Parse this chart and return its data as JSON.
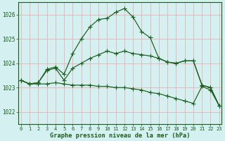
{
  "title": "Graphe pression niveau de la mer (hPa)",
  "background_color": "#d4f0f0",
  "grid_color": "#e8b0b0",
  "line_color": "#1a5c1a",
  "ylim": [
    1021.5,
    1026.5
  ],
  "yticks": [
    1022,
    1023,
    1024,
    1025,
    1026
  ],
  "xlim": [
    -0.3,
    23.3
  ],
  "xticks": [
    0,
    1,
    2,
    3,
    4,
    5,
    6,
    7,
    8,
    9,
    10,
    11,
    12,
    13,
    14,
    15,
    16,
    17,
    18,
    19,
    20,
    21,
    22,
    23
  ],
  "series": [
    {
      "x": [
        0,
        1,
        2,
        3,
        4,
        5,
        6,
        7,
        8,
        9,
        10,
        11,
        12,
        13,
        14,
        15,
        16,
        17,
        18,
        19,
        20,
        21,
        22,
        23
      ],
      "y": [
        1023.3,
        1023.15,
        1023.15,
        1023.15,
        1023.2,
        1023.15,
        1023.1,
        1023.1,
        1023.1,
        1023.05,
        1023.05,
        1023.0,
        1023.0,
        1022.95,
        1022.9,
        1022.8,
        1022.75,
        1022.65,
        1022.55,
        1022.45,
        1022.35,
        1023.05,
        1022.9,
        1022.25
      ]
    },
    {
      "x": [
        0,
        1,
        2,
        3,
        4,
        5,
        6,
        7,
        8,
        9,
        10,
        11,
        12,
        13,
        14,
        15,
        16,
        17,
        18,
        19,
        20,
        21,
        22,
        23
      ],
      "y": [
        1023.3,
        1023.15,
        1023.2,
        1023.7,
        1023.8,
        1023.3,
        1023.8,
        1024.0,
        1024.2,
        1024.35,
        1024.5,
        1024.4,
        1024.5,
        1024.4,
        1024.35,
        1024.3,
        1024.2,
        1024.05,
        1024.0,
        1024.1,
        1024.1,
        1023.1,
        1023.0,
        1022.25
      ]
    },
    {
      "x": [
        0,
        1,
        2,
        3,
        4,
        5,
        6,
        7,
        8,
        9,
        10,
        11,
        12,
        13,
        14,
        15,
        16,
        17,
        18,
        19,
        20,
        21,
        22,
        23
      ],
      "y": [
        1023.3,
        1023.15,
        1023.2,
        1023.75,
        1023.85,
        1023.55,
        1024.4,
        1025.0,
        1025.5,
        1025.8,
        1025.85,
        1026.1,
        1026.25,
        1025.9,
        1025.3,
        1025.05,
        1024.2,
        1024.05,
        1024.0,
        1024.1,
        1024.1,
        1023.1,
        1023.0,
        1022.25
      ]
    }
  ]
}
